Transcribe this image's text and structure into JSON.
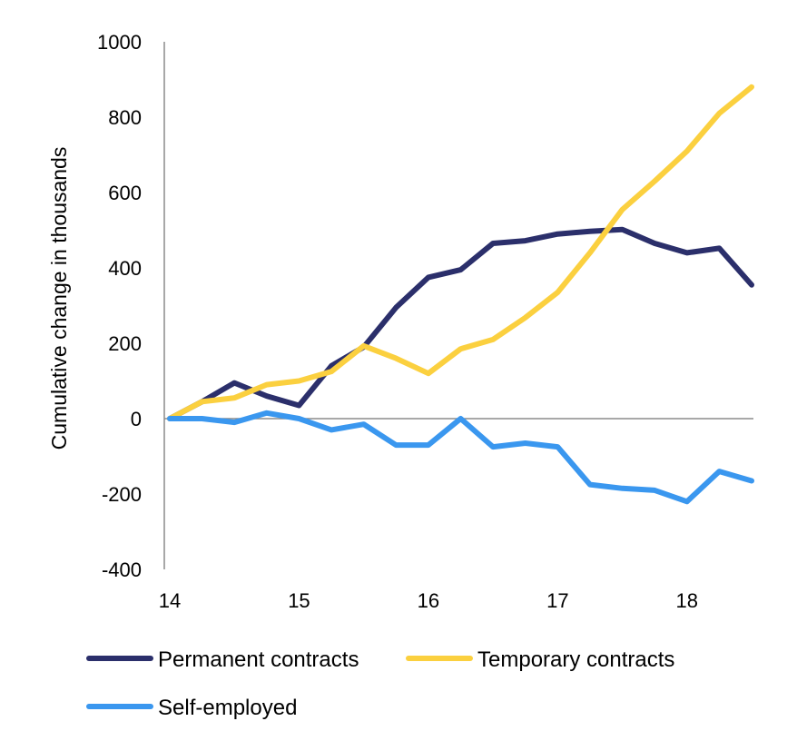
{
  "chart_data": {
    "type": "line",
    "title": "",
    "xlabel": "",
    "ylabel": "Cumulative change in thousands",
    "xlim": [
      14,
      18.5
    ],
    "ylim": [
      -400,
      1000
    ],
    "xticks": [
      14,
      15,
      16,
      17,
      18
    ],
    "xtick_labels": [
      "14",
      "15",
      "16",
      "17",
      "18"
    ],
    "yticks": [
      1000,
      800,
      600,
      400,
      200,
      0,
      -200,
      -400
    ],
    "ytick_labels": [
      "1000",
      "800",
      "600",
      "400",
      "200",
      "0",
      "-200",
      "-400"
    ],
    "grid": false,
    "zero_line": true,
    "legend_position": "bottom",
    "x": [
      14.0,
      14.25,
      14.5,
      14.75,
      15.0,
      15.25,
      15.5,
      15.75,
      16.0,
      16.25,
      16.5,
      16.75,
      17.0,
      17.25,
      17.5,
      17.75,
      18.0,
      18.25,
      18.5
    ],
    "series": [
      {
        "name": "Permanent contracts",
        "color": "#2B2F6B",
        "values": [
          0,
          45,
          95,
          60,
          35,
          140,
          190,
          295,
          375,
          395,
          465,
          472,
          490,
          497,
          502,
          465,
          440,
          452,
          355
        ]
      },
      {
        "name": "Temporary contracts",
        "color": "#FBD03F",
        "values": [
          0,
          45,
          55,
          90,
          100,
          125,
          193,
          160,
          120,
          185,
          210,
          268,
          335,
          440,
          555,
          630,
          710,
          810,
          880
        ]
      },
      {
        "name": "Self-employed",
        "color": "#3A97EF",
        "values": [
          0,
          0,
          -10,
          15,
          0,
          -30,
          -15,
          -70,
          -70,
          0,
          -75,
          -65,
          -75,
          -175,
          -185,
          -190,
          -220,
          -140,
          -165
        ]
      }
    ]
  }
}
